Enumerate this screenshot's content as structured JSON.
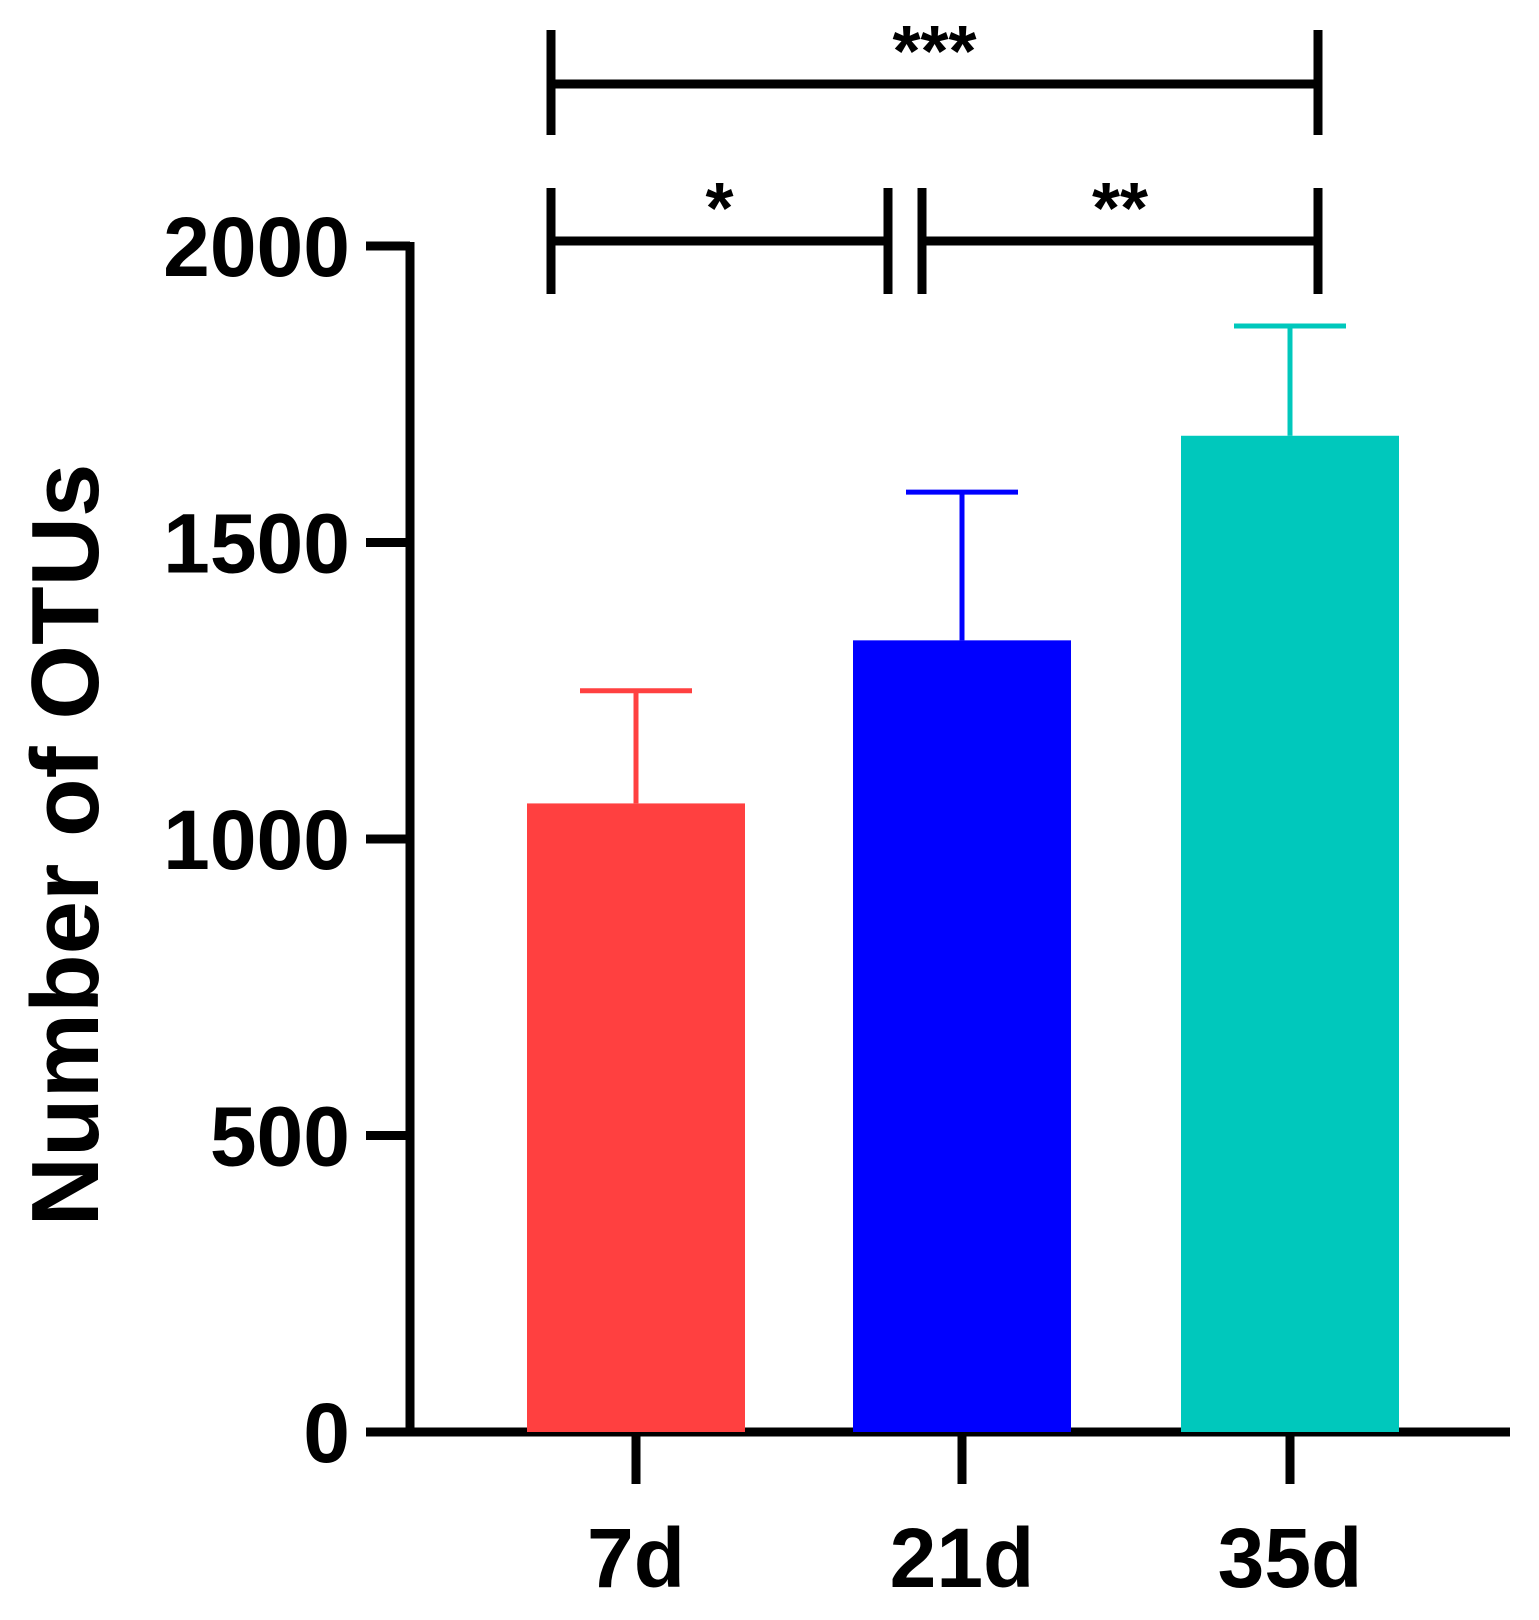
{
  "chart_data": {
    "type": "bar",
    "title": "",
    "xlabel": "",
    "ylabel": "Number of OTUs",
    "ylim": [
      0,
      2000
    ],
    "yticks": [
      0,
      500,
      1000,
      1500,
      2000
    ],
    "ytick_labels": [
      "0",
      "500",
      "1000",
      "1500",
      "2000"
    ],
    "categories": [
      "7d",
      "21d",
      "35d"
    ],
    "values": [
      1060,
      1335,
      1680
    ],
    "errors": [
      190,
      250,
      185
    ],
    "colors": [
      "#ff4040",
      "#0000ff",
      "#00c8bc"
    ],
    "significance": [
      {
        "from": 0,
        "to": 2,
        "label": "***"
      },
      {
        "from": 0,
        "to": 1,
        "label": "*"
      },
      {
        "from": 1,
        "to": 2,
        "label": "**"
      }
    ]
  }
}
